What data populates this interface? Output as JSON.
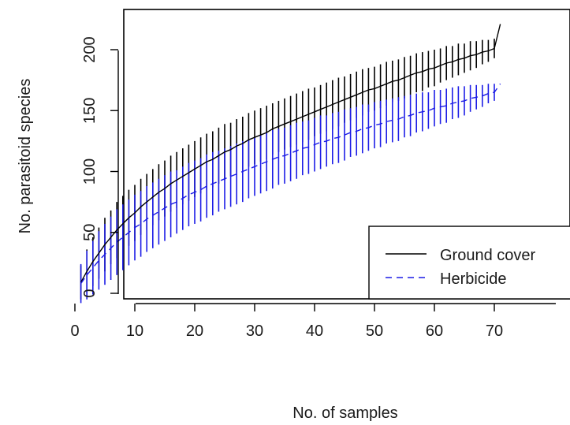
{
  "chart_data": {
    "type": "line",
    "title": "",
    "xlabel": "No. of samples",
    "ylabel": "No. parasitoid species",
    "xlim": [
      0,
      72
    ],
    "ylim": [
      -8,
      232
    ],
    "x_ticks": [
      0,
      10,
      20,
      30,
      40,
      50,
      60,
      70
    ],
    "y_ticks": [
      0,
      50,
      100,
      150,
      200
    ],
    "x": [
      1,
      2,
      3,
      4,
      5,
      6,
      7,
      8,
      9,
      10,
      11,
      12,
      13,
      14,
      15,
      16,
      17,
      18,
      19,
      20,
      21,
      22,
      23,
      24,
      25,
      26,
      27,
      28,
      29,
      30,
      31,
      32,
      33,
      34,
      35,
      36,
      37,
      38,
      39,
      40,
      41,
      42,
      43,
      44,
      45,
      46,
      47,
      48,
      49,
      50,
      51,
      52,
      53,
      54,
      55,
      56,
      57,
      58,
      59,
      60,
      61,
      62,
      63,
      64,
      65,
      66,
      67,
      68,
      69,
      70,
      71
    ],
    "legend": {
      "position": "bottom-right",
      "entries": [
        "Ground cover",
        "Herbicide"
      ]
    },
    "grid": false,
    "series": [
      {
        "name": "Ground cover",
        "color": "#000000",
        "line_style": "solid",
        "values": [
          9,
          18,
          26,
          33,
          40,
          46,
          52,
          57,
          62,
          66,
          71,
          75,
          79,
          83,
          86,
          90,
          93,
          96,
          99,
          102,
          105,
          108,
          110,
          113,
          116,
          118,
          121,
          123,
          126,
          128,
          130,
          132,
          135,
          137,
          139,
          141,
          143,
          145,
          147,
          149,
          151,
          153,
          155,
          157,
          159,
          161,
          163,
          165,
          167,
          168,
          170,
          172,
          174,
          175,
          177,
          179,
          181,
          182,
          184,
          185,
          187,
          189,
          190,
          192,
          193,
          195,
          196,
          198,
          199,
          201,
          221
        ],
        "error_half_width": [
          14,
          18,
          20,
          21,
          22,
          22,
          23,
          23,
          23,
          23,
          23,
          23,
          23,
          23,
          23,
          23,
          23,
          23,
          23,
          23,
          23,
          23,
          23,
          23,
          23,
          22,
          22,
          22,
          22,
          22,
          22,
          22,
          21,
          21,
          21,
          21,
          21,
          21,
          21,
          20,
          20,
          20,
          20,
          20,
          19,
          19,
          19,
          19,
          18,
          18,
          18,
          18,
          17,
          17,
          17,
          16,
          16,
          16,
          15,
          15,
          14,
          14,
          13,
          13,
          12,
          12,
          11,
          10,
          9,
          8,
          0
        ]
      },
      {
        "name": "Herbicide",
        "color": "#1c1ce6",
        "line_style": "dashed",
        "values": [
          8,
          15,
          21,
          27,
          32,
          37,
          42,
          46,
          50,
          54,
          57,
          61,
          64,
          67,
          70,
          73,
          75,
          78,
          81,
          83,
          85,
          88,
          90,
          92,
          94,
          96,
          98,
          100,
          102,
          104,
          106,
          108,
          110,
          112,
          113,
          115,
          117,
          119,
          120,
          122,
          124,
          125,
          127,
          128,
          130,
          132,
          133,
          135,
          136,
          138,
          139,
          141,
          142,
          143,
          145,
          146,
          148,
          149,
          150,
          152,
          153,
          154,
          156,
          157,
          158,
          160,
          161,
          162,
          164,
          165,
          172
        ],
        "error_half_width": [
          16,
          20,
          22,
          24,
          25,
          26,
          27,
          27,
          27,
          27,
          27,
          27,
          27,
          27,
          27,
          27,
          26,
          26,
          26,
          26,
          26,
          26,
          26,
          25,
          25,
          25,
          25,
          25,
          24,
          24,
          24,
          24,
          24,
          23,
          23,
          23,
          23,
          22,
          22,
          22,
          22,
          21,
          21,
          21,
          21,
          20,
          20,
          20,
          19,
          19,
          19,
          18,
          18,
          18,
          17,
          17,
          16,
          16,
          15,
          15,
          14,
          14,
          13,
          13,
          12,
          11,
          10,
          9,
          8,
          7,
          0
        ]
      }
    ]
  }
}
